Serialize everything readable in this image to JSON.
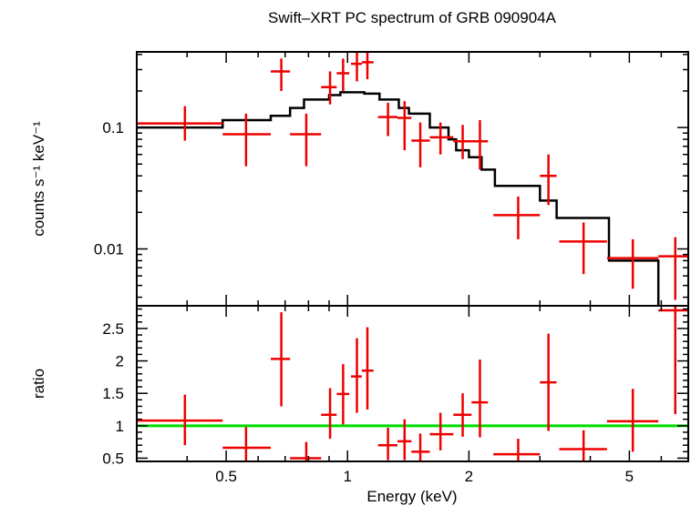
{
  "chart_data": {
    "type": "scatter",
    "title": "Swift–XRT PC spectrum of GRB 090904A",
    "xlabel": "Energy (keV)",
    "x_scale": "log",
    "xlim": [
      0.3,
      7.0
    ],
    "x_ticks": [
      {
        "value": 0.5,
        "label": "0.5"
      },
      {
        "value": 1,
        "label": "1"
      },
      {
        "value": 2,
        "label": "2"
      },
      {
        "value": 5,
        "label": "5"
      }
    ],
    "colors": {
      "data": "#ee0000",
      "model": "#000000",
      "unity": "#00dd00"
    },
    "panels": [
      {
        "name": "spectrum",
        "ylabel": "counts s⁻¹ keV⁻¹",
        "y_scale": "log",
        "ylim": [
          0.0034,
          0.42
        ],
        "y_ticks": [
          {
            "value": 0.1,
            "label": "0.1"
          },
          {
            "value": 0.01,
            "label": "0.01"
          }
        ],
        "data": [
          {
            "x": 0.395,
            "xlo": 0.3,
            "xhi": 0.49,
            "y": 0.108,
            "ylo": 0.078,
            "yhi": 0.15
          },
          {
            "x": 0.56,
            "xlo": 0.49,
            "xhi": 0.645,
            "y": 0.088,
            "ylo": 0.048,
            "yhi": 0.13
          },
          {
            "x": 0.685,
            "xlo": 0.645,
            "xhi": 0.72,
            "y": 0.29,
            "ylo": 0.2,
            "yhi": 0.37
          },
          {
            "x": 0.79,
            "xlo": 0.72,
            "xhi": 0.86,
            "y": 0.088,
            "ylo": 0.048,
            "yhi": 0.13
          },
          {
            "x": 0.905,
            "xlo": 0.86,
            "xhi": 0.94,
            "y": 0.215,
            "ylo": 0.155,
            "yhi": 0.29
          },
          {
            "x": 0.975,
            "xlo": 0.94,
            "xhi": 1.01,
            "y": 0.28,
            "ylo": 0.2,
            "yhi": 0.37
          },
          {
            "x": 1.055,
            "xlo": 1.02,
            "xhi": 1.085,
            "y": 0.335,
            "ylo": 0.24,
            "yhi": 0.42
          },
          {
            "x": 1.12,
            "xlo": 1.085,
            "xhi": 1.16,
            "y": 0.345,
            "ylo": 0.25,
            "yhi": 0.42
          },
          {
            "x": 1.26,
            "xlo": 1.19,
            "xhi": 1.33,
            "y": 0.122,
            "ylo": 0.085,
            "yhi": 0.16
          },
          {
            "x": 1.385,
            "xlo": 1.33,
            "xhi": 1.44,
            "y": 0.12,
            "ylo": 0.065,
            "yhi": 0.165
          },
          {
            "x": 1.515,
            "xlo": 1.44,
            "xhi": 1.6,
            "y": 0.078,
            "ylo": 0.047,
            "yhi": 0.11
          },
          {
            "x": 1.7,
            "xlo": 1.6,
            "xhi": 1.83,
            "y": 0.083,
            "ylo": 0.06,
            "yhi": 0.11
          },
          {
            "x": 1.93,
            "xlo": 1.83,
            "xhi": 2.03,
            "y": 0.077,
            "ylo": 0.055,
            "yhi": 0.105
          },
          {
            "x": 2.13,
            "xlo": 2.03,
            "xhi": 2.23,
            "y": 0.077,
            "ylo": 0.045,
            "yhi": 0.115
          },
          {
            "x": 2.65,
            "xlo": 2.3,
            "xhi": 3.0,
            "y": 0.019,
            "ylo": 0.012,
            "yhi": 0.027
          },
          {
            "x": 3.15,
            "xlo": 3.0,
            "xhi": 3.3,
            "y": 0.04,
            "ylo": 0.023,
            "yhi": 0.06
          },
          {
            "x": 3.85,
            "xlo": 3.35,
            "xhi": 4.4,
            "y": 0.0115,
            "ylo": 0.0062,
            "yhi": 0.0165
          },
          {
            "x": 5.1,
            "xlo": 4.4,
            "xhi": 5.9,
            "y": 0.0084,
            "ylo": 0.0047,
            "yhi": 0.012
          },
          {
            "x": 6.5,
            "xlo": 5.9,
            "xhi": 7.0,
            "y": 0.0087,
            "ylo": 0.0038,
            "yhi": 0.0125
          }
        ],
        "model": [
          [
            0.3,
            0.1
          ],
          [
            0.49,
            0.1
          ],
          [
            0.49,
            0.115
          ],
          [
            0.645,
            0.115
          ],
          [
            0.645,
            0.125
          ],
          [
            0.72,
            0.125
          ],
          [
            0.72,
            0.145
          ],
          [
            0.78,
            0.145
          ],
          [
            0.78,
            0.17
          ],
          [
            0.9,
            0.17
          ],
          [
            0.9,
            0.185
          ],
          [
            0.96,
            0.185
          ],
          [
            0.96,
            0.195
          ],
          [
            1.1,
            0.195
          ],
          [
            1.1,
            0.19
          ],
          [
            1.2,
            0.19
          ],
          [
            1.2,
            0.17
          ],
          [
            1.34,
            0.17
          ],
          [
            1.34,
            0.145
          ],
          [
            1.42,
            0.145
          ],
          [
            1.42,
            0.13
          ],
          [
            1.6,
            0.13
          ],
          [
            1.6,
            0.1
          ],
          [
            1.78,
            0.1
          ],
          [
            1.78,
            0.08
          ],
          [
            1.86,
            0.08
          ],
          [
            1.86,
            0.065
          ],
          [
            2.0,
            0.065
          ],
          [
            2.0,
            0.057
          ],
          [
            2.15,
            0.057
          ],
          [
            2.15,
            0.045
          ],
          [
            2.32,
            0.045
          ],
          [
            2.32,
            0.033
          ],
          [
            3.0,
            0.033
          ],
          [
            3.0,
            0.025
          ],
          [
            3.3,
            0.025
          ],
          [
            3.3,
            0.018
          ],
          [
            4.45,
            0.018
          ],
          [
            4.45,
            0.008
          ],
          [
            5.9,
            0.008
          ],
          [
            5.9,
            0.0034
          ]
        ]
      },
      {
        "name": "ratio",
        "ylabel": "ratio",
        "y_scale": "linear",
        "ylim": [
          0.45,
          2.85
        ],
        "y_ticks": [
          {
            "value": 0.5,
            "label": "0.5"
          },
          {
            "value": 1,
            "label": "1"
          },
          {
            "value": 1.5,
            "label": "1.5"
          },
          {
            "value": 2,
            "label": "2"
          },
          {
            "value": 2.5,
            "label": "2.5"
          }
        ],
        "reference_line": 1,
        "data": [
          {
            "x": 0.395,
            "xlo": 0.3,
            "xhi": 0.49,
            "y": 1.08,
            "ylo": 0.7,
            "yhi": 1.48
          },
          {
            "x": 0.56,
            "xlo": 0.49,
            "xhi": 0.645,
            "y": 0.66,
            "ylo": 0.45,
            "yhi": 0.98
          },
          {
            "x": 0.685,
            "xlo": 0.645,
            "xhi": 0.72,
            "y": 2.03,
            "ylo": 1.3,
            "yhi": 2.75
          },
          {
            "x": 0.79,
            "xlo": 0.72,
            "xhi": 0.86,
            "y": 0.5,
            "ylo": 0.45,
            "yhi": 0.75
          },
          {
            "x": 0.905,
            "xlo": 0.86,
            "xhi": 0.94,
            "y": 1.17,
            "ylo": 0.8,
            "yhi": 1.58
          },
          {
            "x": 0.975,
            "xlo": 0.94,
            "xhi": 1.01,
            "y": 1.49,
            "ylo": 1.02,
            "yhi": 1.95
          },
          {
            "x": 1.055,
            "xlo": 1.02,
            "xhi": 1.085,
            "y": 1.76,
            "ylo": 1.2,
            "yhi": 2.35
          },
          {
            "x": 1.12,
            "xlo": 1.085,
            "xhi": 1.16,
            "y": 1.85,
            "ylo": 1.25,
            "yhi": 2.52
          },
          {
            "x": 1.26,
            "xlo": 1.19,
            "xhi": 1.33,
            "y": 0.7,
            "ylo": 0.47,
            "yhi": 0.97
          },
          {
            "x": 1.385,
            "xlo": 1.33,
            "xhi": 1.44,
            "y": 0.76,
            "ylo": 0.47,
            "yhi": 1.1
          },
          {
            "x": 1.515,
            "xlo": 1.44,
            "xhi": 1.6,
            "y": 0.6,
            "ylo": 0.45,
            "yhi": 0.88
          },
          {
            "x": 1.7,
            "xlo": 1.6,
            "xhi": 1.83,
            "y": 0.87,
            "ylo": 0.62,
            "yhi": 1.2
          },
          {
            "x": 1.93,
            "xlo": 1.83,
            "xhi": 2.03,
            "y": 1.17,
            "ylo": 0.83,
            "yhi": 1.5
          },
          {
            "x": 2.13,
            "xlo": 2.03,
            "xhi": 2.23,
            "y": 1.36,
            "ylo": 0.82,
            "yhi": 2.02
          },
          {
            "x": 2.65,
            "xlo": 2.3,
            "xhi": 3.0,
            "y": 0.56,
            "ylo": 0.45,
            "yhi": 0.8
          },
          {
            "x": 3.15,
            "xlo": 3.0,
            "xhi": 3.3,
            "y": 1.67,
            "ylo": 0.92,
            "yhi": 2.42
          },
          {
            "x": 3.85,
            "xlo": 3.35,
            "xhi": 4.4,
            "y": 0.64,
            "ylo": 0.45,
            "yhi": 0.93
          },
          {
            "x": 5.1,
            "xlo": 4.4,
            "xhi": 5.9,
            "y": 1.07,
            "ylo": 0.6,
            "yhi": 1.57
          },
          {
            "x": 6.5,
            "xlo": 5.9,
            "xhi": 7.0,
            "y": 2.78,
            "ylo": 1.18,
            "yhi": 2.85
          }
        ]
      }
    ]
  }
}
